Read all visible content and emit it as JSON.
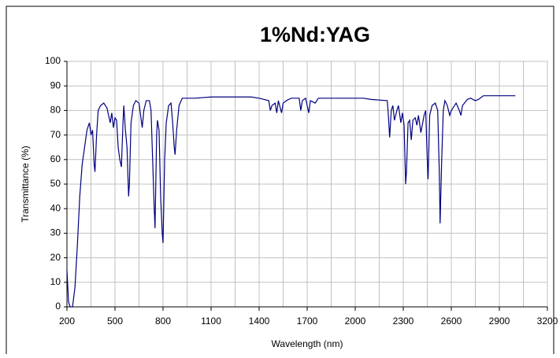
{
  "chart_data": {
    "type": "line",
    "title": "1%Nd:YAG",
    "x_label": "Wavelength (nm)",
    "y_label": "Transmittance (%)",
    "x": [
      200,
      210,
      220,
      235,
      250,
      265,
      280,
      295,
      310,
      325,
      340,
      350,
      360,
      370,
      375,
      385,
      395,
      410,
      430,
      450,
      460,
      470,
      480,
      490,
      500,
      510,
      520,
      530,
      540,
      550,
      555,
      565,
      575,
      585,
      590,
      600,
      615,
      630,
      650,
      660,
      670,
      680,
      695,
      715,
      725,
      735,
      745,
      750,
      760,
      765,
      775,
      785,
      795,
      800,
      810,
      820,
      835,
      850,
      860,
      870,
      875,
      885,
      900,
      920,
      1000,
      1100,
      1200,
      1300,
      1350,
      1400,
      1460,
      1470,
      1480,
      1500,
      1510,
      1520,
      1540,
      1550,
      1570,
      1600,
      1650,
      1660,
      1670,
      1690,
      1700,
      1710,
      1720,
      1750,
      1770,
      1850,
      1950,
      2050,
      2100,
      2200,
      2205,
      2215,
      2225,
      2235,
      2245,
      2260,
      2270,
      2285,
      2295,
      2305,
      2315,
      2320,
      2330,
      2340,
      2350,
      2360,
      2375,
      2385,
      2395,
      2410,
      2430,
      2440,
      2450,
      2455,
      2465,
      2480,
      2500,
      2515,
      2525,
      2530,
      2540,
      2550,
      2560,
      2575,
      2590,
      2600,
      2620,
      2630,
      2650,
      2660,
      2670,
      2700,
      2720,
      2750,
      2770,
      2800,
      2900,
      3000
    ],
    "series": [
      {
        "name": "1%Nd:YAG",
        "color": "#000080",
        "values": [
          15,
          2,
          0,
          0,
          8,
          25,
          45,
          58,
          65,
          72,
          75,
          70,
          72,
          58,
          55,
          70,
          80,
          82,
          83,
          81,
          78,
          75,
          79,
          73,
          77,
          76,
          65,
          60,
          57,
          75,
          82,
          72,
          65,
          45,
          50,
          75,
          82,
          84,
          83,
          78,
          73,
          80,
          84,
          84,
          80,
          60,
          40,
          32,
          70,
          76,
          72,
          45,
          30,
          26,
          60,
          75,
          82,
          83,
          75,
          65,
          62,
          72,
          82,
          85,
          85,
          85.5,
          85.5,
          85.5,
          85.5,
          85,
          84,
          80,
          82,
          83,
          79,
          84,
          79,
          83,
          84,
          85,
          85,
          80,
          84,
          85,
          82,
          79,
          84,
          83,
          85,
          85,
          85,
          85,
          84.5,
          84,
          80,
          69,
          80,
          82,
          76,
          80,
          82,
          75,
          79,
          74,
          50,
          55,
          75,
          76,
          68,
          76,
          77,
          74,
          78,
          71,
          78,
          80,
          60,
          52,
          78,
          82,
          83,
          80,
          55,
          34,
          60,
          80,
          84,
          82,
          78,
          80,
          82,
          83,
          80,
          78,
          82,
          84.5,
          85,
          84,
          84.5,
          86,
          86,
          86
        ]
      }
    ],
    "xlim": [
      200,
      3200
    ],
    "ylim": [
      0,
      100
    ],
    "xticks": [
      200,
      500,
      800,
      1100,
      1400,
      1700,
      2000,
      2300,
      2600,
      2900,
      3200
    ],
    "xminorticks": [
      350,
      650,
      950,
      1250,
      1550,
      1850,
      2150,
      2450,
      2750,
      3050
    ],
    "yticks": [
      0,
      10,
      20,
      30,
      40,
      50,
      60,
      70,
      80,
      90,
      100
    ],
    "grid": true
  }
}
